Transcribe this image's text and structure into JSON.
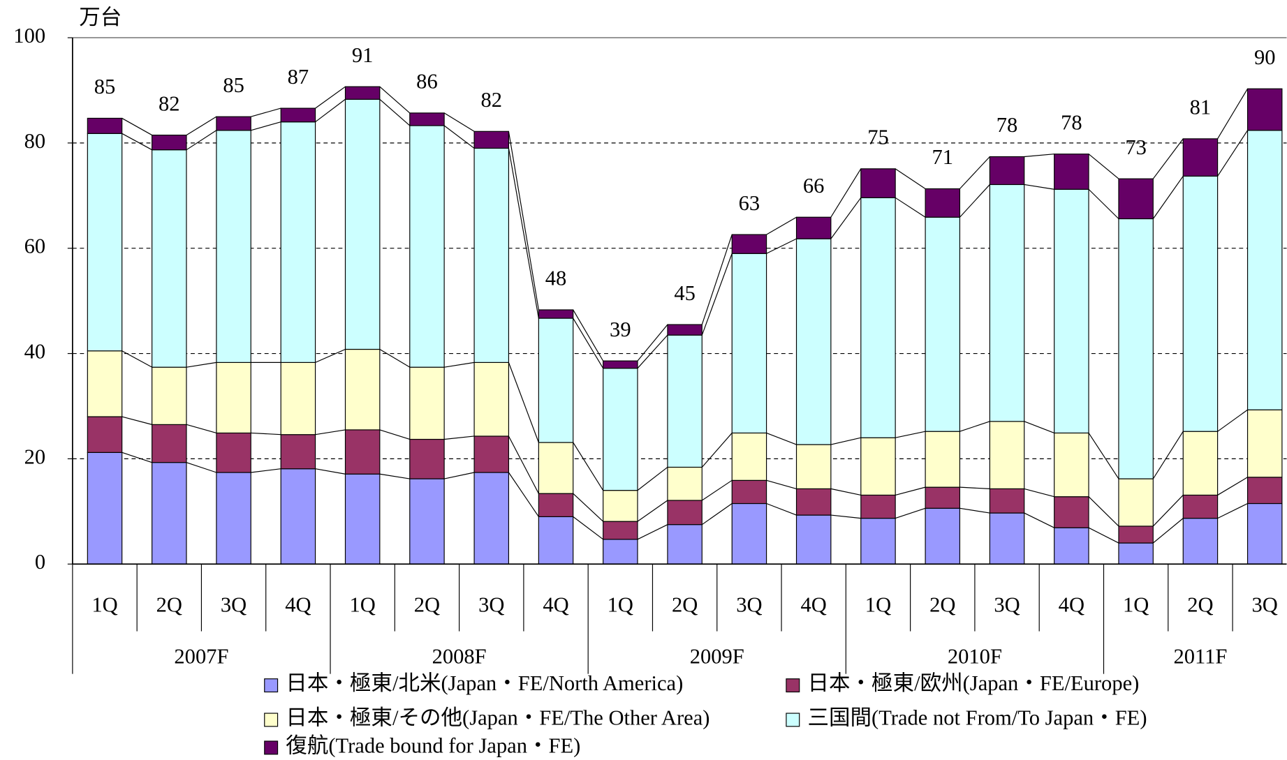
{
  "chart_data": {
    "type": "stacked_bar",
    "y_unit": "万台",
    "groups": [
      {
        "name": "2007F",
        "quarters": [
          "1Q",
          "2Q",
          "3Q",
          "4Q"
        ]
      },
      {
        "name": "2008F",
        "quarters": [
          "1Q",
          "2Q",
          "3Q",
          "4Q"
        ]
      },
      {
        "name": "2009F",
        "quarters": [
          "1Q",
          "2Q",
          "3Q",
          "4Q"
        ]
      },
      {
        "name": "2010F",
        "quarters": [
          "1Q",
          "2Q",
          "3Q",
          "4Q"
        ]
      },
      {
        "name": "2011F",
        "quarters": [
          "1Q",
          "2Q",
          "3Q"
        ]
      }
    ],
    "series": [
      {
        "name": "日本・極東/北米(Japan・FE/North America)",
        "color": "#9999ff",
        "values": [
          21.2,
          19.3,
          17.4,
          18.1,
          17.1,
          16.2,
          17.4,
          9.0,
          4.7,
          7.5,
          11.5,
          9.3,
          8.7,
          10.6,
          9.7,
          6.9,
          4.0,
          8.7,
          11.5
        ]
      },
      {
        "name": "日本・極東/欧州(Japan・FE/Europe)",
        "color": "#993366",
        "values": [
          6.8,
          7.2,
          7.5,
          6.5,
          8.4,
          7.5,
          6.9,
          4.4,
          3.4,
          4.6,
          4.4,
          5.0,
          4.4,
          4.0,
          4.6,
          5.9,
          3.2,
          4.4,
          5.0
        ]
      },
      {
        "name": "日本・極東/その他(Japan・FE/The Other Area)",
        "color": "#ffffcc",
        "values": [
          12.5,
          10.9,
          13.4,
          13.7,
          15.3,
          13.7,
          14.0,
          9.7,
          5.9,
          6.3,
          9.0,
          8.4,
          10.9,
          10.6,
          12.8,
          12.1,
          9.0,
          12.1,
          12.8
        ]
      },
      {
        "name": "三国間(Trade not From/To Japan・FE)",
        "color": "#ccffff",
        "values": [
          41.3,
          41.3,
          44.1,
          45.7,
          47.5,
          45.9,
          40.7,
          23.6,
          23.2,
          25.1,
          34.1,
          39.1,
          45.6,
          40.7,
          45.0,
          46.3,
          49.4,
          48.5,
          53.1
        ]
      },
      {
        "name": "復航(Trade bound for Japan・FE)",
        "color": "#660066",
        "values": [
          2.9,
          2.8,
          2.6,
          2.6,
          2.4,
          2.4,
          3.2,
          1.6,
          1.4,
          2.0,
          3.6,
          4.1,
          5.5,
          5.4,
          5.3,
          6.7,
          7.6,
          7.1,
          7.9
        ]
      }
    ],
    "totals": [
      85,
      82,
      85,
      87,
      91,
      86,
      82,
      48,
      39,
      45,
      63,
      66,
      75,
      71,
      78,
      78,
      73,
      81,
      90
    ],
    "ylim": [
      0,
      100
    ],
    "yticks": [
      0,
      20,
      40,
      60,
      80,
      100
    ],
    "grid": true
  }
}
